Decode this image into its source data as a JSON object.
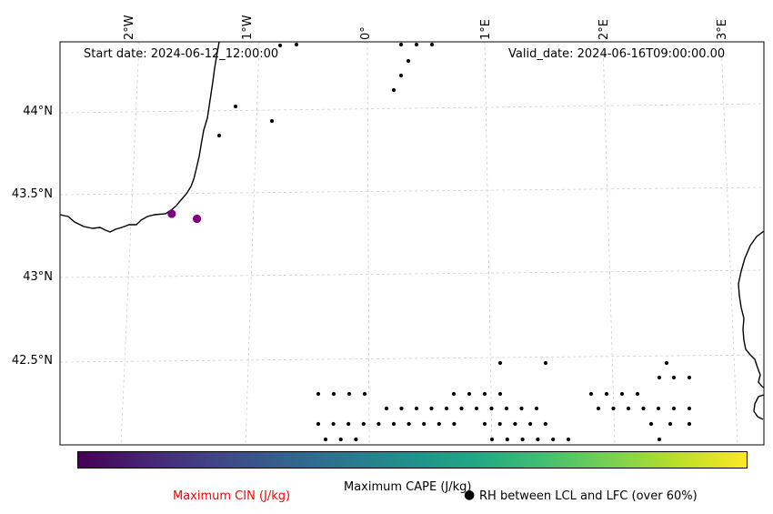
{
  "map": {
    "start_date": "Start date: 2024-06-12_12:00:00",
    "valid_date": "Valid_date: 2024-06-16T09:00:00.00",
    "lon_labels": [
      "2°W",
      "1°W",
      "0°",
      "1°E",
      "2°E",
      "3°E"
    ],
    "lat_labels": [
      "44°N",
      "43.5°N",
      "43°N",
      "42.5°N"
    ],
    "cin_points": [
      {
        "lon": -1.63,
        "lat": 43.39,
        "color": "#800080"
      },
      {
        "lon": -1.42,
        "lat": 43.36,
        "color": "#800080"
      }
    ]
  },
  "colorbar": {
    "label": "Maximum CAPE (J/kg)",
    "colors": [
      "#440154",
      "#482475",
      "#414487",
      "#355f8d",
      "#2a788e",
      "#21918c",
      "#22a884",
      "#44bf70",
      "#7ad151",
      "#bddf26",
      "#fde725"
    ]
  },
  "legend": {
    "cin_label": "Maximum CIN (J/kg)",
    "cin_color": "#ff0000",
    "rh_marker": "●",
    "rh_label": "RH between LCL and LFC (over 60%)"
  }
}
